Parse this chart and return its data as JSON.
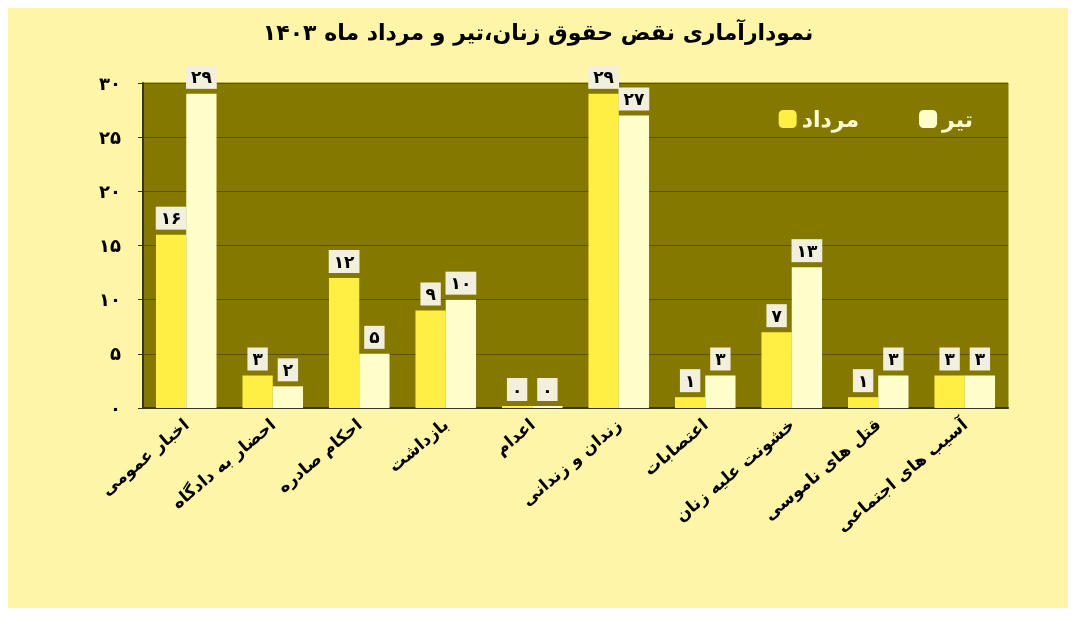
{
  "chart_data": {
    "type": "bar",
    "title": "نمودارآماری نقض حقوق زنان،تیر و مرداد ماه ۱۴۰۳",
    "categories": [
      "اخبار عمومی",
      "احضار به دادگاه",
      "احکام صادره",
      "بازداشت",
      "اعدام",
      "زندان و زندانی",
      "اعتصابات",
      "خشونت علیه زنان",
      "قتل های ناموسی",
      "آسیب های اجتماعی"
    ],
    "series": [
      {
        "name": "مرداد",
        "color": "#ffee44",
        "values": [
          16,
          3,
          12,
          9,
          0,
          29,
          1,
          7,
          1,
          3
        ],
        "value_labels": [
          "۱۶",
          "۳",
          "۱۲",
          "۹",
          "۰",
          "۲۹",
          "۱",
          "۷",
          "۱",
          "۳"
        ]
      },
      {
        "name": "تیر",
        "color": "#ffffcc",
        "values": [
          29,
          2,
          5,
          10,
          0,
          27,
          3,
          13,
          3,
          3
        ],
        "value_labels": [
          "۲۹",
          "۲",
          "۵",
          "۱۰",
          "۰",
          "۲۷",
          "۳",
          "۱۳",
          "۳",
          "۳"
        ]
      }
    ],
    "ylim": [
      0,
      30
    ],
    "yticks": [
      {
        "value": 0,
        "label": "۰"
      },
      {
        "value": 5,
        "label": "۵"
      },
      {
        "value": 10,
        "label": "۱۰"
      },
      {
        "value": 15,
        "label": "۱۵"
      },
      {
        "value": 20,
        "label": "۲۰"
      },
      {
        "value": 25,
        "label": "۲۵"
      },
      {
        "value": 30,
        "label": "۳۰"
      }
    ],
    "grid": "y",
    "legend": "top right"
  }
}
